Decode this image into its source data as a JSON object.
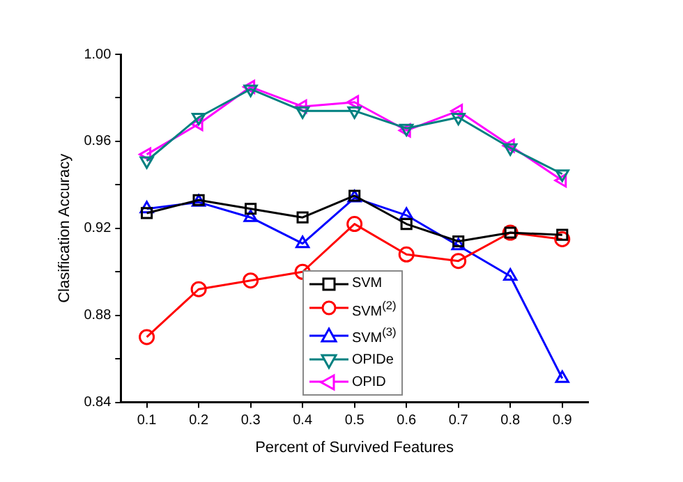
{
  "chart_data": {
    "type": "line",
    "xlabel": "Percent of Survived Features",
    "ylabel": "Clasification Accuracy",
    "x": [
      0.1,
      0.2,
      0.3,
      0.4,
      0.5,
      0.6,
      0.7,
      0.8,
      0.9
    ],
    "series": [
      {
        "name": "SVM",
        "color": "#000000",
        "marker": "square",
        "values": [
          0.927,
          0.933,
          0.929,
          0.925,
          0.935,
          0.922,
          0.914,
          0.918,
          0.917
        ]
      },
      {
        "name": "SVM$^{(2)}$",
        "color": "#ff0000",
        "marker": "circle",
        "values": [
          0.87,
          0.892,
          0.896,
          0.9,
          0.922,
          0.908,
          0.905,
          0.918,
          0.915
        ]
      },
      {
        "name": "SVM$^{(3)}$",
        "color": "#0000ff",
        "marker": "triangle",
        "values": [
          0.929,
          0.932,
          0.925,
          0.913,
          0.934,
          0.926,
          0.912,
          0.898,
          0.851
        ]
      },
      {
        "name": "OPIDe",
        "color": "#008080",
        "marker": "triangle",
        "values": [
          0.951,
          0.971,
          0.984,
          0.974,
          0.974,
          0.966,
          0.971,
          0.957,
          0.945
        ]
      },
      {
        "name": "OPID",
        "color": "#ff00ff",
        "marker": "triangle",
        "values": [
          0.954,
          0.968,
          0.985,
          0.976,
          0.978,
          0.965,
          0.974,
          0.958,
          0.942
        ]
      }
    ],
    "xlim": [
      0.05,
      0.95
    ],
    "xticks": [
      0.1,
      0.2,
      0.3,
      0.4,
      0.5,
      0.6,
      0.7,
      0.8,
      0.9
    ],
    "ylim": [
      0.84,
      1.0
    ],
    "yticks": [
      {
        "value": 0.84,
        "label": "0.84"
      },
      {
        "value": 0.86,
        "label": null
      },
      {
        "value": 0.88,
        "label": "0.88"
      },
      {
        "value": 0.9,
        "label": null
      },
      {
        "value": 0.92,
        "label": "0.92"
      },
      {
        "value": 0.94,
        "label": null
      },
      {
        "value": 0.96,
        "label": "0.96"
      },
      {
        "value": 0.98,
        "label": null
      },
      {
        "value": 1.0,
        "label": "1.00"
      }
    ],
    "grid": false,
    "legend": "bottom",
    "line_style": "solid"
  }
}
